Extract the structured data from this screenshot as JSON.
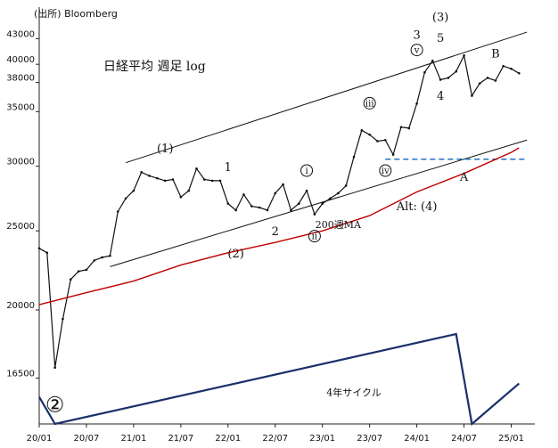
{
  "chart_data": {
    "type": "line",
    "source": "(出所) Bloomberg",
    "title": "日経平均 週足 log",
    "y_scale": "log",
    "ylim": [
      14500,
      47000
    ],
    "xlim": [
      "2020-01",
      "2025-04"
    ],
    "y_ticks": [
      {
        "value": 43000,
        "label": "43000"
      },
      {
        "value": 40000,
        "label": "40000"
      },
      {
        "value": 38000,
        "label": "38000"
      },
      {
        "value": 35000,
        "label": "35000"
      },
      {
        "value": 30000,
        "label": "30000"
      },
      {
        "value": 25000,
        "label": "25000"
      },
      {
        "value": 20000,
        "label": "20000"
      },
      {
        "value": 16500,
        "label": "16500"
      }
    ],
    "x_ticks": [
      {
        "value": "2020-01",
        "label": "20/01"
      },
      {
        "value": "2020-07",
        "label": "20/07"
      },
      {
        "value": "2021-01",
        "label": "21/01"
      },
      {
        "value": "2021-07",
        "label": "21/07"
      },
      {
        "value": "2022-01",
        "label": "22/01"
      },
      {
        "value": "2022-07",
        "label": "22/07"
      },
      {
        "value": "2023-01",
        "label": "23/01"
      },
      {
        "value": "2023-07",
        "label": "23/07"
      },
      {
        "value": "2024-01",
        "label": "24/01"
      },
      {
        "value": "2024-07",
        "label": "24/07"
      },
      {
        "value": "2025-01",
        "label": "25/01"
      }
    ],
    "series": [
      {
        "name": "日経平均",
        "color": "#111111",
        "x": [
          "2020-01",
          "2020-02",
          "2020-03",
          "2020-04",
          "2020-05",
          "2020-06",
          "2020-07",
          "2020-08",
          "2020-09",
          "2020-10",
          "2020-11",
          "2020-12",
          "2021-01",
          "2021-02",
          "2021-03",
          "2021-04",
          "2021-05",
          "2021-06",
          "2021-07",
          "2021-08",
          "2021-09",
          "2021-10",
          "2021-11",
          "2021-12",
          "2022-01",
          "2022-02",
          "2022-03",
          "2022-04",
          "2022-05",
          "2022-06",
          "2022-07",
          "2022-08",
          "2022-09",
          "2022-10",
          "2022-11",
          "2022-12",
          "2023-01",
          "2023-02",
          "2023-03",
          "2023-04",
          "2023-05",
          "2023-06",
          "2023-07",
          "2023-08",
          "2023-09",
          "2023-10",
          "2023-11",
          "2023-12",
          "2024-01",
          "2024-02",
          "2024-03",
          "2024-04",
          "2024-05",
          "2024-06",
          "2024-07",
          "2024-08",
          "2024-09",
          "2024-10",
          "2024-11",
          "2024-12",
          "2025-01",
          "2025-02"
        ],
        "values": [
          23800,
          23500,
          17000,
          19500,
          21800,
          22300,
          22400,
          23000,
          23200,
          23300,
          26400,
          27400,
          28000,
          29500,
          29200,
          29000,
          28800,
          28900,
          27500,
          28000,
          29800,
          28900,
          28800,
          28800,
          27000,
          26500,
          27700,
          26800,
          26700,
          26500,
          27800,
          28500,
          26500,
          27000,
          28000,
          26200,
          27000,
          27400,
          27800,
          28400,
          30800,
          33200,
          32800,
          32200,
          32300,
          31000,
          33500,
          33400,
          35800,
          39100,
          40400,
          38300,
          38500,
          39200,
          41000,
          36600,
          37900,
          38500,
          38200,
          39800,
          39500,
          39000
        ]
      },
      {
        "name": "200週MA",
        "color": "#c00000",
        "x": [
          "2020-01",
          "2020-07",
          "2021-01",
          "2021-07",
          "2022-01",
          "2022-07",
          "2023-01",
          "2023-07",
          "2024-01",
          "2024-07",
          "2025-01",
          "2025-02"
        ],
        "values": [
          20300,
          21000,
          21700,
          22700,
          23500,
          24200,
          25000,
          26100,
          27900,
          29400,
          31200,
          31600
        ]
      }
    ],
    "annotations": [
      {
        "text": "(1)",
        "x": "2021-05",
        "y": 31200
      },
      {
        "text": "1",
        "x": "2022-01",
        "y": 29600
      },
      {
        "text": "2",
        "x": "2022-07",
        "y": 24700
      },
      {
        "text": "(2)",
        "x": "2022-02",
        "y": 23200
      },
      {
        "text": "ⅰ",
        "x": "2022-11",
        "y": 29600
      },
      {
        "text": "ⅱ",
        "x": "2022-12",
        "y": 24600
      },
      {
        "text": "ⅲ",
        "x": "2023-07",
        "y": 35800
      },
      {
        "text": "ⅳ",
        "x": "2023-09",
        "y": 29600
      },
      {
        "text": "ⅴ",
        "x": "2024-01",
        "y": 41600
      },
      {
        "text": "3",
        "x": "2024-01",
        "y": 43000
      },
      {
        "text": "(3)",
        "x": "2024-04",
        "y": 45200
      },
      {
        "text": "5",
        "x": "2024-04",
        "y": 42600
      },
      {
        "text": "4",
        "x": "2024-04",
        "y": 36200
      },
      {
        "text": "A",
        "x": "2024-07",
        "y": 28800
      },
      {
        "text": "B",
        "x": "2024-11",
        "y": 40800
      },
      {
        "text": "Alt: (4)",
        "x": "2024-01",
        "y": 26500
      },
      {
        "text": "200週MA",
        "x": "2023-03",
        "y": 25200
      },
      {
        "text": "4年サイクル",
        "x": "2023-05",
        "y": 15700
      },
      {
        "text": "②",
        "x": "2020-03",
        "y": 15000
      }
    ],
    "trendlines": [
      {
        "name": "upper-channel",
        "from": [
          "2020-12",
          30300
        ],
        "to": [
          "2025-03",
          43800
        ]
      },
      {
        "name": "lower-channel",
        "from": [
          "2020-10",
          22600
        ],
        "to": [
          "2025-03",
          32300
        ]
      },
      {
        "name": "support-dashed",
        "from": [
          "2023-09",
          30600
        ],
        "to": [
          "2025-03",
          30600
        ],
        "style": "dashed",
        "color": "#1f6fc5"
      }
    ],
    "cycle": {
      "name": "4年サイクル",
      "color": "#1a2f6b",
      "x": [
        "2020-01",
        "2020-03",
        "2024-06",
        "2024-08",
        "2025-02"
      ],
      "level": [
        0.3,
        0,
        1,
        0,
        0.45
      ]
    },
    "grid": false
  }
}
